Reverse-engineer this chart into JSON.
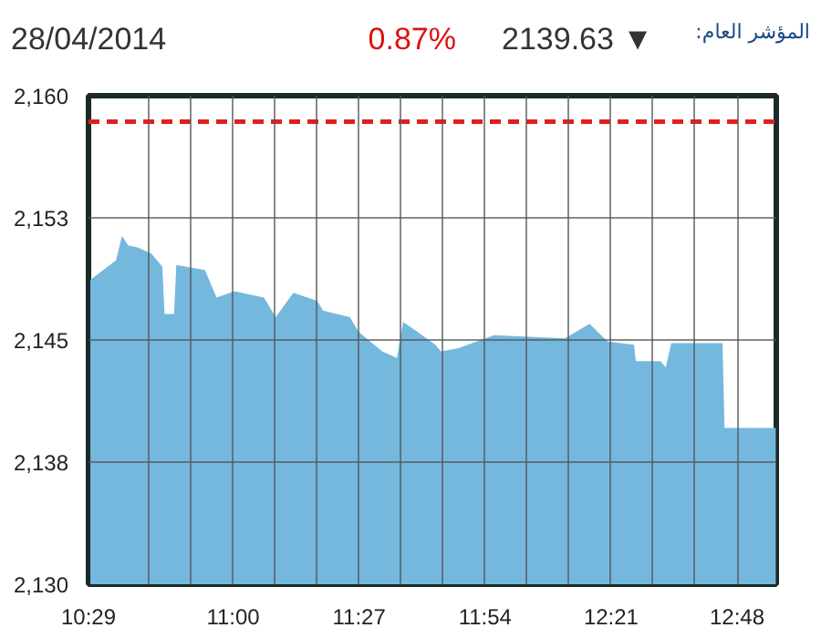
{
  "chart_data": {
    "type": "area",
    "annotations": [
      "28/04/2014",
      "0.87%",
      "2139.63 ▼",
      "المؤشر العام:"
    ],
    "x": [
      10.49,
      10.582,
      10.603,
      10.625,
      10.657,
      10.708,
      10.747,
      10.755,
      10.789,
      10.797,
      10.899,
      10.941,
      11.004,
      11.11,
      11.152,
      11.215,
      11.3,
      11.321,
      11.417,
      11.448,
      11.49,
      11.532,
      11.585,
      11.607,
      11.658,
      11.722,
      11.742,
      11.805,
      11.932,
      12.185,
      12.273,
      12.337,
      12.432,
      12.438,
      12.527,
      12.545,
      12.565,
      12.748,
      12.755,
      12.938
    ],
    "series": [
      {
        "color": "#74b8de",
        "values": [
          2148.7,
          2149.9,
          2151.4,
          2150.8,
          2150.7,
          2150.3,
          2149.5,
          2146.6,
          2146.6,
          2149.6,
          2149.3,
          2147.6,
          2148.0,
          2147.6,
          2146.4,
          2147.9,
          2147.4,
          2146.8,
          2146.4,
          2145.5,
          2144.9,
          2144.3,
          2143.9,
          2146.1,
          2145.5,
          2144.7,
          2144.3,
          2144.5,
          2145.3,
          2145.1,
          2146.0,
          2144.9,
          2144.7,
          2143.7,
          2143.7,
          2143.3,
          2144.8,
          2144.8,
          2139.6,
          2139.6
        ]
      }
    ],
    "xlim": [
      10.4833,
      12.94
    ],
    "xticks": [
      {
        "value": 10.4833,
        "label": "10:29"
      },
      {
        "value": 10.7,
        "label": null
      },
      {
        "value": 10.85,
        "label": null
      },
      {
        "value": 11,
        "label": "11:00"
      },
      {
        "value": 11.15,
        "label": null
      },
      {
        "value": 11.3,
        "label": null
      },
      {
        "value": 11.45,
        "label": "11:27"
      },
      {
        "value": 11.6,
        "label": null
      },
      {
        "value": 11.75,
        "label": null
      },
      {
        "value": 11.9,
        "label": "11:54"
      },
      {
        "value": 12.05,
        "label": null
      },
      {
        "value": 12.2,
        "label": null
      },
      {
        "value": 12.35,
        "label": "12:21"
      },
      {
        "value": 12.5,
        "label": null
      },
      {
        "value": 12.65,
        "label": null
      },
      {
        "value": 12.8,
        "label": "12:48"
      }
    ],
    "ylim": [
      2130,
      2160
    ],
    "yticks": [
      {
        "value": 2130,
        "label": "2,130"
      },
      {
        "value": 2137.5,
        "label": "2,138"
      },
      {
        "value": 2145,
        "label": "2,145"
      },
      {
        "value": 2152.5,
        "label": "2,153"
      },
      {
        "value": 2160,
        "label": "2,160"
      }
    ],
    "ref_lines": [
      {
        "axis": "y",
        "value": 2158.4,
        "color": "#e02020",
        "line_style": "dashed"
      }
    ],
    "grid": true
  }
}
